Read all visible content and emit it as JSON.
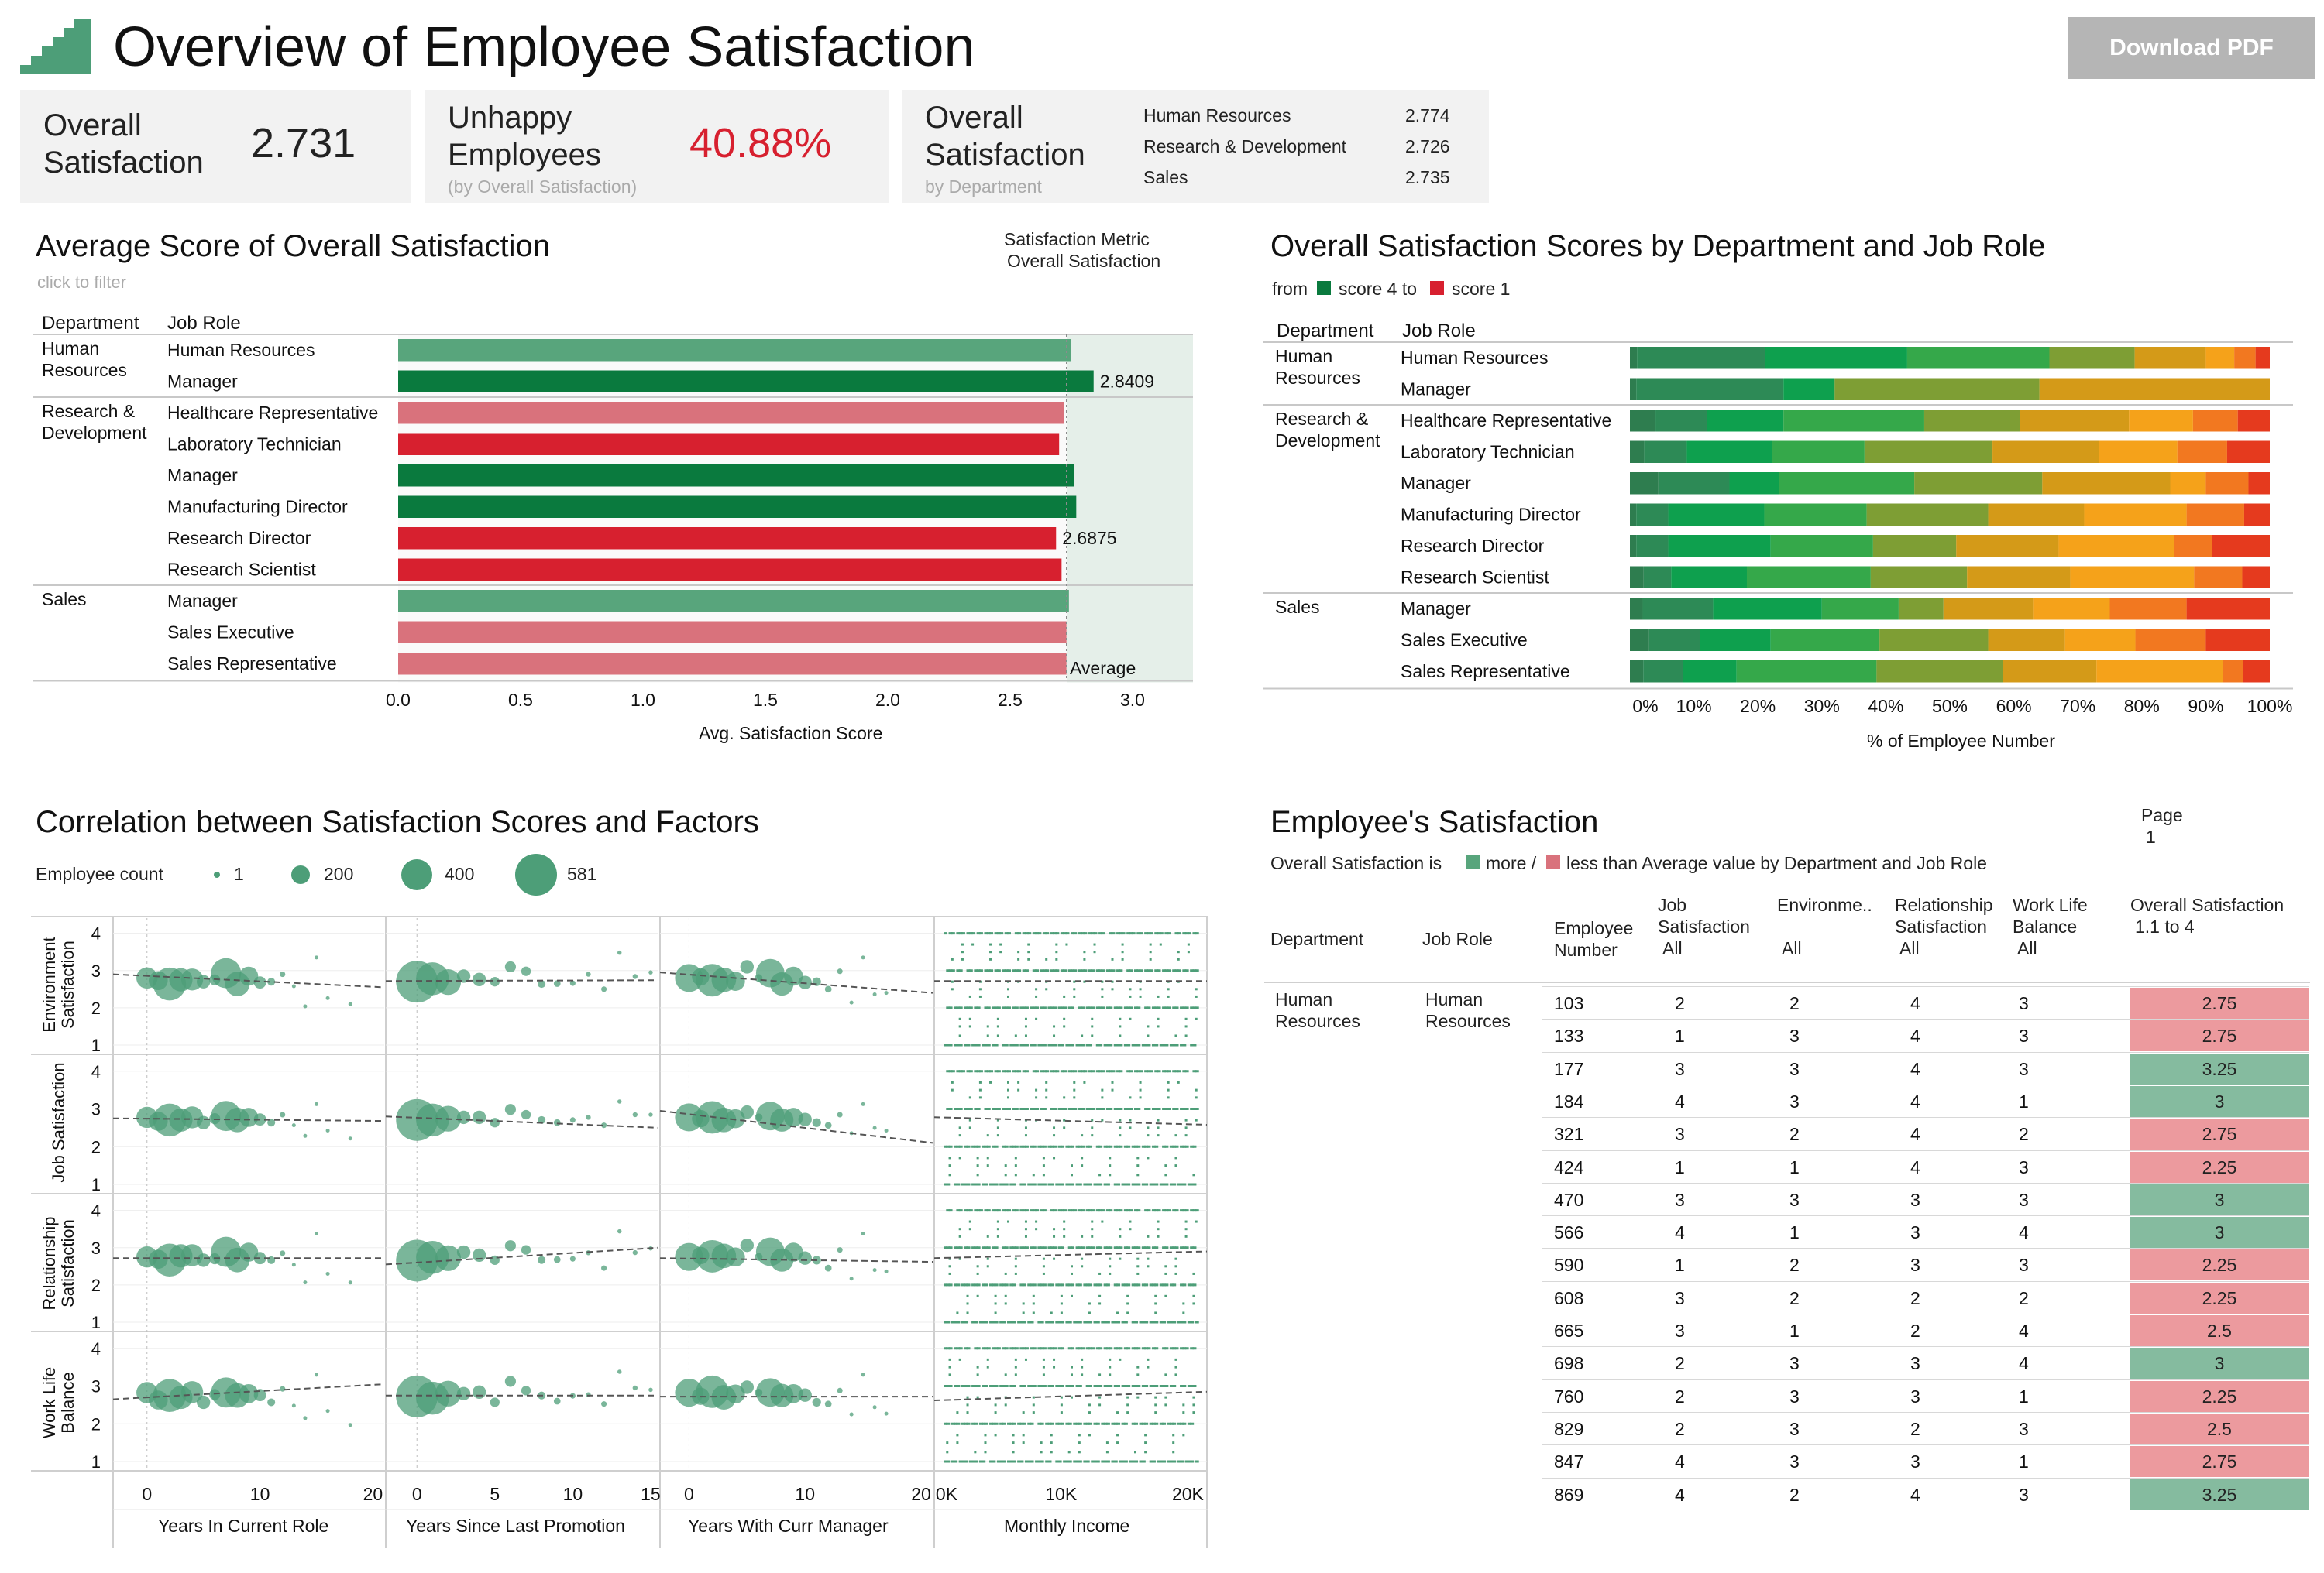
{
  "header": {
    "title": "Overview of Employee Satisfaction",
    "download_label": "Download PDF"
  },
  "kpis": {
    "overall": {
      "label_1": "Overall",
      "label_2": "Satisfaction",
      "value": "2.731"
    },
    "unhappy": {
      "label_1": "Unhappy",
      "label_2": "Employees",
      "sub": "(by Overall Satisfaction)",
      "value": "40.88%"
    },
    "by_dept": {
      "label_1": "Overall",
      "label_2": "Satisfaction",
      "sub": "by Department",
      "rows": [
        {
          "dept": "Human Resources",
          "value": "2.774"
        },
        {
          "dept": "Research & Development",
          "value": "2.726"
        },
        {
          "dept": "Sales",
          "value": "2.735"
        }
      ]
    }
  },
  "colors": {
    "above_dark": "#0a7a3e",
    "above_light": "#58a57c",
    "below_dark": "#d7202f",
    "below_light": "#d9727c",
    "cell_good": "#85bb9f",
    "cell_bad": "#ec9a9e",
    "bubble": "#4d9e78",
    "stack": [
      "#2e7d4f",
      "#2d8a56",
      "#0ea04e",
      "#35a84a",
      "#7e9e34",
      "#d49a18",
      "#f5a21a",
      "#f27820",
      "#e53a1e"
    ]
  },
  "avg_chart": {
    "title": "Average Score of Overall Satisfaction",
    "subtitle": "click to filter",
    "metric_label": "Satisfaction Metric",
    "metric_value": "Overall Satisfaction",
    "col_dept": "Department",
    "col_role": "Job Role",
    "xlabel": "Avg. Satisfaction Score",
    "average_label": "Average",
    "label_hr_manager": "2.8409",
    "label_rd_director": "2.6875"
  },
  "stacked_chart": {
    "title": "Overall Satisfaction Scores by Department and Job Role",
    "legend_from": "from",
    "legend_s4": "score 4 to",
    "legend_s1": "score 1",
    "col_dept": "Department",
    "col_role": "Job Role",
    "xlabel": "% of Employee Number",
    "ticks": [
      "0%",
      "10%",
      "20%",
      "30%",
      "40%",
      "50%",
      "60%",
      "70%",
      "80%",
      "90%",
      "100%"
    ]
  },
  "scatter_chart": {
    "title": "Correlation between Satisfaction Scores and Factors",
    "legend_title": "Employee count",
    "legend_sizes": [
      "1",
      "200",
      "400",
      "581"
    ],
    "row_labels": [
      [
        "Environment",
        "Satisfaction"
      ],
      [
        "Job Satisfaction",
        ""
      ],
      [
        "Relationship",
        "Satisfaction"
      ],
      [
        "Work Life",
        "Balance"
      ]
    ],
    "col_labels": [
      "Years In Current Role",
      "Years Since Last Promotion",
      "Years With Curr Manager",
      "Monthly Income"
    ],
    "y_ticks": [
      "4",
      "3",
      "2",
      "1"
    ],
    "x_ticks": [
      [
        "0",
        "10",
        "20"
      ],
      [
        "0",
        "5",
        "10",
        "15"
      ],
      [
        "0",
        "10",
        "20"
      ],
      [
        "0K",
        "10K",
        "20K"
      ]
    ]
  },
  "table": {
    "title": "Employee's Satisfaction",
    "page_label": "Page",
    "page_value": "1",
    "legend_prefix": "Overall Satisfaction  is",
    "legend_more": "more /",
    "legend_less": "less than Average value by Department and Job Role",
    "columns": {
      "department": "Department",
      "job_role": "Job Role",
      "employee_1": "Employee",
      "employee_2": "Number",
      "job_1": "Job",
      "job_2": "Satisfaction",
      "job_3": "All",
      "env_1": "Environme..",
      "env_3": "All",
      "rel_1": "Relationship",
      "rel_2": "Satisfaction",
      "rel_3": "All",
      "wlb_1": "Work Life",
      "wlb_2": "Balance",
      "wlb_3": "All",
      "overall_1": "Overall Satisfaction",
      "overall_2": "1.1 to 4"
    },
    "group_dept_1": "Human",
    "group_dept_2": "Resources",
    "group_role_1": "Human",
    "group_role_2": "Resources",
    "rows": [
      {
        "emp": "103",
        "job": "2",
        "env": "2",
        "rel": "4",
        "wlb": "3",
        "overall": "2.75",
        "above": false
      },
      {
        "emp": "133",
        "job": "1",
        "env": "3",
        "rel": "4",
        "wlb": "3",
        "overall": "2.75",
        "above": false
      },
      {
        "emp": "177",
        "job": "3",
        "env": "3",
        "rel": "4",
        "wlb": "3",
        "overall": "3.25",
        "above": true
      },
      {
        "emp": "184",
        "job": "4",
        "env": "3",
        "rel": "4",
        "wlb": "1",
        "overall": "3",
        "above": true
      },
      {
        "emp": "321",
        "job": "3",
        "env": "2",
        "rel": "4",
        "wlb": "2",
        "overall": "2.75",
        "above": false
      },
      {
        "emp": "424",
        "job": "1",
        "env": "1",
        "rel": "4",
        "wlb": "3",
        "overall": "2.25",
        "above": false
      },
      {
        "emp": "470",
        "job": "3",
        "env": "3",
        "rel": "3",
        "wlb": "3",
        "overall": "3",
        "above": true
      },
      {
        "emp": "566",
        "job": "4",
        "env": "1",
        "rel": "3",
        "wlb": "4",
        "overall": "3",
        "above": true
      },
      {
        "emp": "590",
        "job": "1",
        "env": "2",
        "rel": "3",
        "wlb": "3",
        "overall": "2.25",
        "above": false
      },
      {
        "emp": "608",
        "job": "3",
        "env": "2",
        "rel": "2",
        "wlb": "2",
        "overall": "2.25",
        "above": false
      },
      {
        "emp": "665",
        "job": "3",
        "env": "1",
        "rel": "2",
        "wlb": "4",
        "overall": "2.5",
        "above": false
      },
      {
        "emp": "698",
        "job": "2",
        "env": "3",
        "rel": "3",
        "wlb": "4",
        "overall": "3",
        "above": true
      },
      {
        "emp": "760",
        "job": "2",
        "env": "3",
        "rel": "3",
        "wlb": "1",
        "overall": "2.25",
        "above": false
      },
      {
        "emp": "829",
        "job": "2",
        "env": "3",
        "rel": "2",
        "wlb": "3",
        "overall": "2.5",
        "above": false
      },
      {
        "emp": "847",
        "job": "4",
        "env": "3",
        "rel": "3",
        "wlb": "1",
        "overall": "2.75",
        "above": false
      },
      {
        "emp": "869",
        "job": "4",
        "env": "2",
        "rel": "4",
        "wlb": "3",
        "overall": "3.25",
        "above": true
      }
    ]
  },
  "chart_data": [
    {
      "type": "bar",
      "title": "Average Score of Overall Satisfaction",
      "xlabel": "Avg. Satisfaction Score",
      "xlim": [
        0,
        3.25
      ],
      "x_ticks": [
        "0.0",
        "0.5",
        "1.0",
        "1.5",
        "2.0",
        "2.5",
        "3.0"
      ],
      "average": 2.731,
      "groups": [
        {
          "dept": [
            "Human",
            "Resources"
          ],
          "bars": [
            {
              "role": "Human Resources",
              "value": 2.75,
              "color": "above_light"
            },
            {
              "role": "Manager",
              "value": 2.8409,
              "color": "above_dark"
            }
          ]
        },
        {
          "dept": [
            "Research &",
            "Development"
          ],
          "bars": [
            {
              "role": "Healthcare Representative",
              "value": 2.72,
              "color": "below_light"
            },
            {
              "role": "Laboratory Technician",
              "value": 2.7,
              "color": "below_dark"
            },
            {
              "role": "Manager",
              "value": 2.76,
              "color": "above_dark"
            },
            {
              "role": "Manufacturing Director",
              "value": 2.77,
              "color": "above_dark"
            },
            {
              "role": "Research Director",
              "value": 2.6875,
              "color": "below_dark"
            },
            {
              "role": "Research Scientist",
              "value": 2.71,
              "color": "below_dark"
            }
          ]
        },
        {
          "dept": [
            "Sales"
          ],
          "bars": [
            {
              "role": "Manager",
              "value": 2.74,
              "color": "above_light"
            },
            {
              "role": "Sales Executive",
              "value": 2.73,
              "color": "below_light"
            },
            {
              "role": "Sales Representative",
              "value": 2.73,
              "color": "below_light"
            }
          ]
        }
      ]
    },
    {
      "type": "bar",
      "stacked": true,
      "title": "Overall Satisfaction Scores by Department and Job Role",
      "xlabel": "% of Employee Number",
      "groups": [
        {
          "dept": [
            "Human",
            "Resources"
          ],
          "rows": [
            {
              "role": "Human Resources",
              "shares": [
                1,
                18,
                20,
                20,
                12,
                10,
                4,
                3,
                2
              ]
            },
            {
              "role": "Manager",
              "shares": [
                1,
                23,
                8,
                0,
                32,
                36,
                0,
                0,
                0
              ]
            }
          ]
        },
        {
          "dept": [
            "Research &",
            "Development"
          ],
          "rows": [
            {
              "role": "Healthcare Representative",
              "shares": [
                4,
                8,
                12,
                22,
                15,
                17,
                10,
                7,
                5
              ]
            },
            {
              "role": "Laboratory Technician",
              "shares": [
                2,
                6,
                12,
                13,
                18,
                15,
                11,
                7,
                6
              ]
            },
            {
              "role": "Manager",
              "shares": [
                4,
                10,
                7,
                19,
                18,
                18,
                5,
                6,
                3
              ]
            },
            {
              "role": "Manufacturing Director",
              "shares": [
                1,
                5,
                15,
                16,
                19,
                15,
                16,
                9,
                4
              ]
            },
            {
              "role": "Research Director",
              "shares": [
                1,
                5,
                16,
                16,
                13,
                16,
                18,
                6,
                9
              ]
            },
            {
              "role": "Research Scientist",
              "shares": [
                2,
                4,
                11,
                18,
                14,
                15,
                18,
                7,
                4
              ]
            }
          ]
        },
        {
          "dept": [
            "Sales"
          ],
          "rows": [
            {
              "role": "Manager",
              "shares": [
                2,
                11,
                17,
                12,
                7,
                14,
                12,
                12,
                13
              ]
            },
            {
              "role": "Sales Executive",
              "shares": [
                3,
                8,
                11,
                17,
                17,
                12,
                11,
                11,
                10
              ]
            },
            {
              "role": "Sales Representative",
              "shares": [
                2,
                6,
                8,
                21,
                19,
                14,
                19,
                3,
                4
              ]
            }
          ]
        }
      ]
    },
    {
      "type": "scatter",
      "title": "Correlation between Satisfaction Scores and Factors",
      "ylim": [
        1,
        4.2
      ],
      "columns": [
        {
          "label": "Years In Current Role",
          "xlim": [
            -3,
            21
          ]
        },
        {
          "label": "Years Since Last Promotion",
          "xlim": [
            -2,
            15.5
          ]
        },
        {
          "label": "Years With Curr Manager",
          "xlim": [
            -2.5,
            21
          ]
        },
        {
          "label": "Monthly Income",
          "xlim": [
            0,
            21500
          ]
        }
      ],
      "rows": [
        "Environment Satisfaction",
        "Job Satisfaction",
        "Relationship Satisfaction",
        "Work Life Balance"
      ],
      "trend": [
        [
          [
            2.9,
            2.55
          ],
          [
            2.72,
            2.74
          ],
          [
            2.95,
            2.4
          ],
          [
            2.72,
            2.72
          ]
        ],
        [
          [
            2.75,
            2.68
          ],
          [
            2.8,
            2.5
          ],
          [
            2.95,
            2.1
          ],
          [
            2.78,
            2.58
          ]
        ],
        [
          [
            2.72,
            2.72
          ],
          [
            2.55,
            3.0
          ],
          [
            2.72,
            2.62
          ],
          [
            2.72,
            2.9
          ]
        ],
        [
          [
            2.65,
            3.05
          ],
          [
            2.75,
            2.75
          ],
          [
            2.72,
            2.72
          ],
          [
            2.62,
            2.85
          ]
        ]
      ],
      "points": {
        "0": [
          [
            0,
            2.8,
            150
          ],
          [
            1,
            2.65,
            120
          ],
          [
            2,
            2.7,
            360
          ],
          [
            3,
            2.7,
            180
          ],
          [
            4,
            2.8,
            160
          ],
          [
            5,
            2.6,
            60
          ],
          [
            6,
            2.75,
            40
          ],
          [
            7,
            2.85,
            300
          ],
          [
            8,
            2.7,
            200
          ],
          [
            9,
            2.8,
            120
          ],
          [
            10,
            2.72,
            50
          ],
          [
            11,
            2.6,
            20
          ],
          [
            12,
            2.9,
            10
          ],
          [
            13,
            2.5,
            5
          ],
          [
            14,
            2.1,
            5
          ],
          [
            15,
            3.3,
            5
          ],
          [
            16,
            2.3,
            3
          ],
          [
            18,
            2.0,
            2
          ]
        ],
        "1": [
          [
            0,
            2.7,
            580
          ],
          [
            1,
            2.7,
            360
          ],
          [
            2,
            2.75,
            220
          ],
          [
            3,
            2.8,
            60
          ],
          [
            4,
            2.8,
            60
          ],
          [
            5,
            2.6,
            30
          ],
          [
            6,
            3.1,
            40
          ],
          [
            7,
            2.9,
            30
          ],
          [
            8,
            2.7,
            20
          ],
          [
            9,
            2.6,
            15
          ],
          [
            10,
            2.7,
            10
          ],
          [
            11,
            2.8,
            8
          ],
          [
            12,
            2.5,
            10
          ],
          [
            13,
            3.4,
            6
          ],
          [
            14,
            2.9,
            8
          ],
          [
            15,
            2.9,
            6
          ]
        ],
        "2": [
          [
            0,
            2.8,
            260
          ],
          [
            1,
            2.75,
            100
          ],
          [
            2,
            2.8,
            350
          ],
          [
            3,
            2.7,
            200
          ],
          [
            4,
            2.75,
            120
          ],
          [
            5,
            3.0,
            60
          ],
          [
            6,
            2.8,
            20
          ],
          [
            7,
            2.85,
            270
          ],
          [
            8,
            2.7,
            180
          ],
          [
            9,
            2.8,
            120
          ],
          [
            10,
            2.72,
            60
          ],
          [
            11,
            2.6,
            25
          ],
          [
            12,
            2.5,
            15
          ],
          [
            13,
            2.9,
            10
          ],
          [
            14,
            2.2,
            5
          ],
          [
            15,
            3.3,
            4
          ],
          [
            16,
            2.4,
            3
          ],
          [
            17,
            2.3,
            2
          ]
        ]
      }
    }
  ]
}
